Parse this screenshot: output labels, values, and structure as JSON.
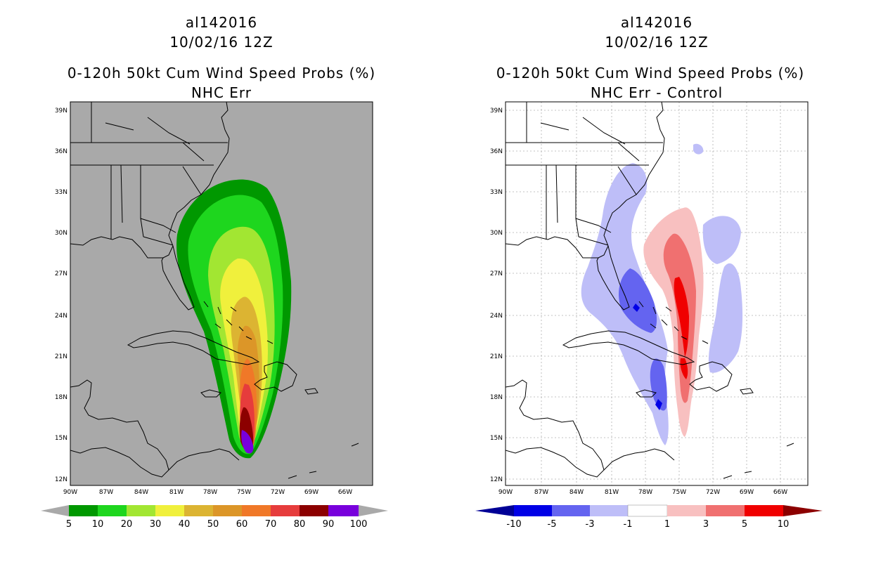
{
  "panels": [
    {
      "storm_id": "al142016",
      "datetime": "10/02/16 12Z",
      "product": "0-120h 50kt Cum Wind Speed Probs (%)",
      "subtitle": "NHC Err",
      "background": "#a9a9a9",
      "lat_labels": [
        "39N",
        "36N",
        "33N",
        "30N",
        "27N",
        "24N",
        "21N",
        "18N",
        "15N",
        "12N"
      ],
      "lon_labels": [
        "90W",
        "87W",
        "84W",
        "81W",
        "78W",
        "75W",
        "72W",
        "69W",
        "66W"
      ],
      "colorbar": {
        "colors": [
          "#009800",
          "#1ed61e",
          "#a2e632",
          "#f0f03c",
          "#dcb432",
          "#dc9628",
          "#f07828",
          "#e63c3c",
          "#8c0000",
          "#7800dc"
        ],
        "labels": [
          "5",
          "10",
          "20",
          "30",
          "40",
          "50",
          "60",
          "70",
          "80",
          "90",
          "100"
        ],
        "under_color": "#a9a9a9",
        "over_color": "#a9a9a9"
      }
    },
    {
      "storm_id": "al142016",
      "datetime": "10/02/16 12Z",
      "product": "0-120h 50kt Cum Wind Speed Probs (%)",
      "subtitle": "NHC Err - Control",
      "background": "#ffffff",
      "lat_labels": [
        "39N",
        "36N",
        "33N",
        "30N",
        "27N",
        "24N",
        "21N",
        "18N",
        "15N",
        "12N"
      ],
      "lon_labels": [
        "90W",
        "87W",
        "84W",
        "81W",
        "78W",
        "75W",
        "72W",
        "69W",
        "66W"
      ],
      "colorbar": {
        "colors": [
          "#0000e6",
          "#6464f0",
          "#bebef8",
          "#ffffff",
          "#f8c0c0",
          "#f07070",
          "#f00000"
        ],
        "labels": [
          "-10",
          "-5",
          "-3",
          "-1",
          "1",
          "3",
          "5",
          "10"
        ],
        "under_color": "#000096",
        "over_color": "#8c0000"
      }
    }
  ]
}
